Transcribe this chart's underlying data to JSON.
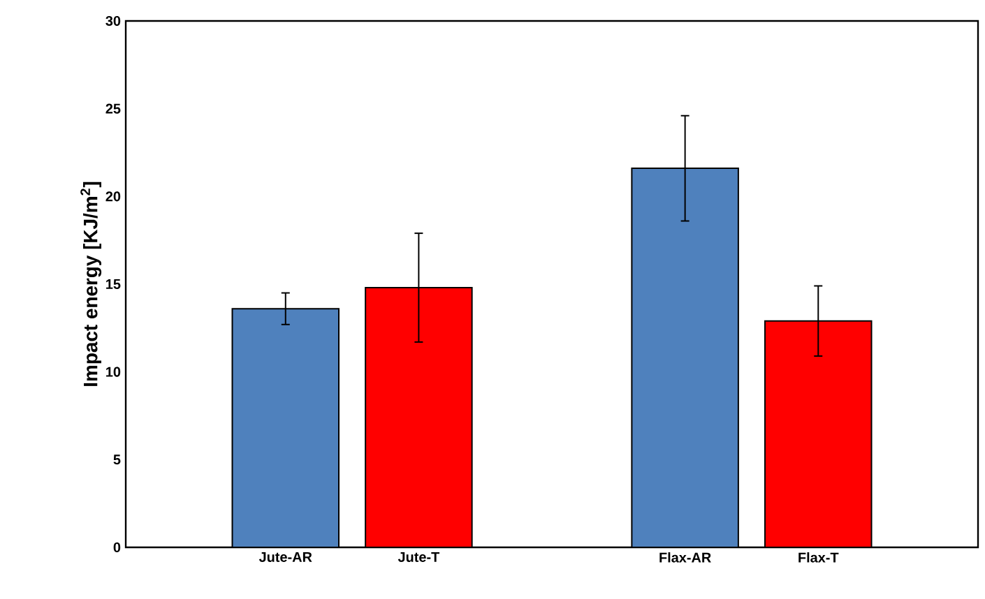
{
  "chart_data": {
    "type": "bar",
    "ylabel": "Impact energy [KJ/m$^{2}$]",
    "categories": [
      "Jute-AR",
      "Jute-T",
      null,
      "Flax-AR",
      "Flax-T"
    ],
    "values": [
      13.6,
      14.8,
      null,
      21.6,
      12.9
    ],
    "errors": [
      0.9,
      3.1,
      null,
      3.0,
      2.0
    ],
    "colors": [
      "#4f81bd",
      "#ff0000",
      null,
      "#4f81bd",
      "#ff0000"
    ],
    "ylim": [
      0,
      30
    ],
    "yticks": [
      0,
      5,
      10,
      15,
      20,
      25,
      30
    ]
  }
}
